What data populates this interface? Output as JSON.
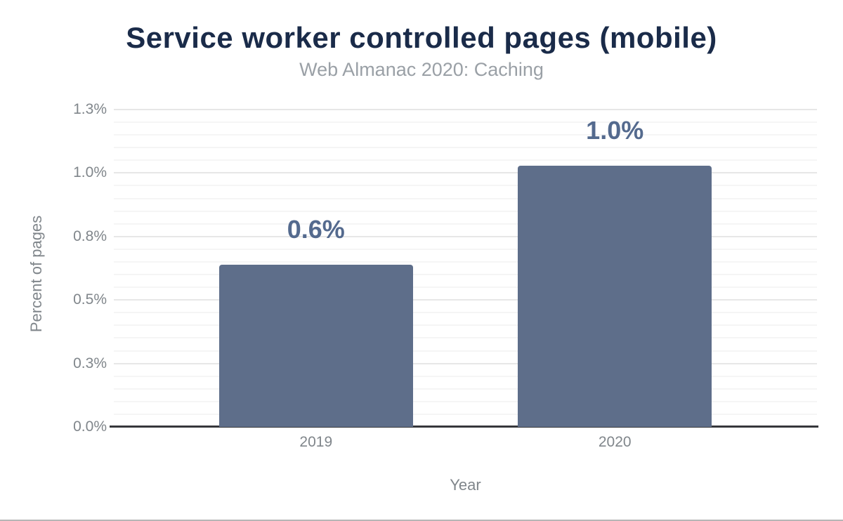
{
  "chart_data": {
    "type": "bar",
    "title": "Service worker controlled pages (mobile)",
    "subtitle": "Web Almanac 2020: Caching",
    "categories": [
      "2019",
      "2020"
    ],
    "values": [
      0.64,
      1.03
    ],
    "value_labels": [
      "0.6%",
      "1.0%"
    ],
    "xlabel": "Year",
    "ylabel": "Percent of pages",
    "ylim": [
      0,
      1.25
    ],
    "y_major_step": 0.25,
    "y_minor_step": 0.05,
    "y_ticks": [
      {
        "value": 0.0,
        "label": "0.0%"
      },
      {
        "value": 0.25,
        "label": "0.3%"
      },
      {
        "value": 0.5,
        "label": "0.5%"
      },
      {
        "value": 0.75,
        "label": "0.8%"
      },
      {
        "value": 1.0,
        "label": "1.0%"
      },
      {
        "value": 1.25,
        "label": "1.3%"
      }
    ],
    "grid": "on",
    "legend": "none",
    "colors": {
      "bar": "#5e6e8a",
      "value_label": "#546a8e",
      "title": "#1a2b49",
      "subtitle": "#9aa0a6",
      "axis_text": "#80868b",
      "major_grid": "#e7e7e7",
      "minor_grid": "#f5f5f5",
      "baseline": "#36373b"
    }
  }
}
